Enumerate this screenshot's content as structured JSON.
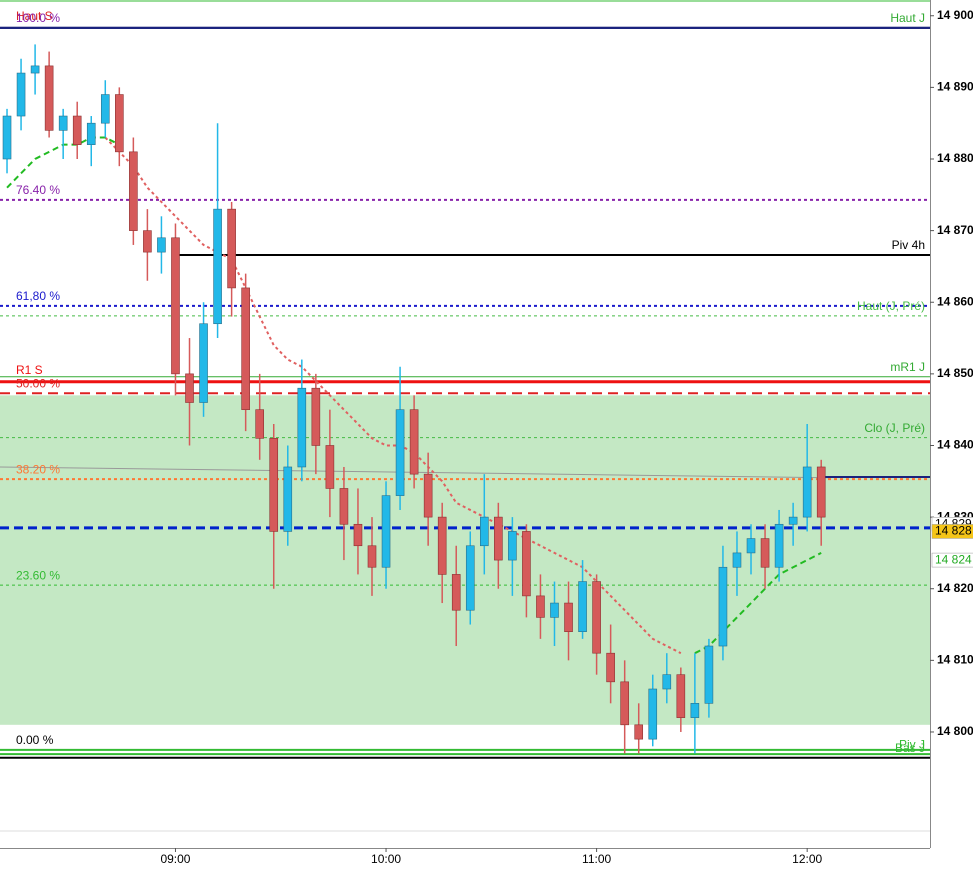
{
  "chart_data": {
    "type": "candlestick",
    "x": [
      "08:12",
      "08:16",
      "08:20",
      "08:24",
      "08:28",
      "08:32",
      "08:36",
      "08:40",
      "08:44",
      "08:48",
      "08:52",
      "08:56",
      "09:00",
      "09:04",
      "09:08",
      "09:12",
      "09:16",
      "09:20",
      "09:24",
      "09:28",
      "09:32",
      "09:36",
      "09:40",
      "09:44",
      "09:48",
      "09:52",
      "09:56",
      "10:00",
      "10:04",
      "10:08",
      "10:12",
      "10:16",
      "10:20",
      "10:24",
      "10:28",
      "10:32",
      "10:36",
      "10:40",
      "10:44",
      "10:48",
      "10:52",
      "10:56",
      "11:00",
      "11:04",
      "11:08",
      "11:12",
      "11:16",
      "11:20",
      "11:24",
      "11:28",
      "11:32",
      "11:36",
      "11:40",
      "11:44",
      "11:48",
      "11:52",
      "11:56",
      "12:00",
      "12:04"
    ],
    "open": [
      14880,
      14886,
      14892,
      14893,
      14884,
      14886,
      14882,
      14885,
      14889,
      14881,
      14870,
      14867,
      14869,
      14850,
      14846,
      14857,
      14873,
      14862,
      14845,
      14841,
      14828,
      14837,
      14848,
      14840,
      14834,
      14829,
      14826,
      14823,
      14833,
      14845,
      14836,
      14830,
      14822,
      14817,
      14826,
      14830,
      14824,
      14828,
      14819,
      14816,
      14818,
      14814,
      14821,
      14811,
      14807,
      14801,
      14799,
      14806,
      14808,
      14802,
      14804,
      14812,
      14823,
      14825,
      14827,
      14823,
      14829,
      14830,
      14837
    ],
    "high": [
      14887,
      14894,
      14896,
      14895,
      14887,
      14888,
      14886,
      14891,
      14890,
      14883,
      14873,
      14872,
      14871,
      14855,
      14860,
      14885,
      14874,
      14864,
      14850,
      14843,
      14840,
      14852,
      14850,
      14845,
      14837,
      14834,
      14830,
      14835,
      14851,
      14847,
      14839,
      14832,
      14826,
      14828,
      14836,
      14832,
      14830,
      14829,
      14822,
      14821,
      14821,
      14824,
      14822,
      14815,
      14810,
      14804,
      14808,
      14811,
      14809,
      14811,
      14813,
      14826,
      14828,
      14829,
      14829,
      14831,
      14832,
      14843,
      14838
    ],
    "low": [
      14878,
      14884,
      14889,
      14883,
      14880,
      14880,
      14879,
      14883,
      14879,
      14868,
      14863,
      14864,
      14847,
      14840,
      14844,
      14855,
      14858,
      14842,
      14838,
      14820,
      14826,
      14835,
      14836,
      14830,
      14824,
      14822,
      14819,
      14820,
      14831,
      14834,
      14826,
      14818,
      14812,
      14815,
      14822,
      14820,
      14819,
      14816,
      14813,
      14812,
      14810,
      14813,
      14808,
      14804,
      14797,
      14797,
      14798,
      14804,
      14800,
      14797,
      14802,
      14810,
      14819,
      14822,
      14820,
      14821,
      14826,
      14828,
      14826
    ],
    "close": [
      14886,
      14892,
      14893,
      14884,
      14886,
      14882,
      14885,
      14889,
      14881,
      14870,
      14867,
      14869,
      14850,
      14846,
      14857,
      14873,
      14862,
      14845,
      14841,
      14828,
      14837,
      14848,
      14840,
      14834,
      14829,
      14826,
      14823,
      14833,
      14845,
      14836,
      14830,
      14822,
      14817,
      14826,
      14830,
      14824,
      14828,
      14819,
      14816,
      14818,
      14814,
      14821,
      14811,
      14807,
      14801,
      14799,
      14806,
      14808,
      14802,
      14804,
      14812,
      14823,
      14825,
      14827,
      14823,
      14829,
      14830,
      14837,
      14830
    ],
    "up_color": "#22b8e8",
    "down_color": "#d55a5a",
    "series": [
      {
        "color": "#e06060",
        "style": "dotted",
        "values": [
          null,
          null,
          null,
          null,
          null,
          null,
          null,
          14883,
          14881,
          14879,
          14876,
          14874,
          14872,
          14870,
          14868,
          14867,
          14866,
          14862,
          14858,
          14854,
          14852,
          14851,
          14849,
          14847,
          14845,
          14843,
          14841,
          14840,
          14840,
          14839,
          14837,
          14835,
          14832,
          14831,
          14830,
          14829,
          14828,
          14827,
          14826,
          14825,
          14824,
          14823,
          14821,
          14819,
          14817,
          14815,
          14813,
          14812,
          14811,
          null,
          null,
          null,
          null,
          null,
          null,
          null,
          null,
          null,
          null
        ]
      },
      {
        "color": "#22bb22",
        "style": "dashed",
        "values": [
          14876,
          14878,
          14880,
          14881,
          14882,
          14882,
          14883,
          14883,
          14882,
          null,
          null,
          null,
          null,
          null,
          null,
          null,
          null,
          null,
          null,
          null,
          null,
          null,
          null,
          null,
          null,
          null,
          null,
          null,
          null,
          null,
          null,
          null,
          null,
          null,
          null,
          null,
          null,
          null,
          null,
          null,
          null,
          null,
          null,
          null,
          null,
          null,
          null,
          null,
          null,
          14811,
          14812,
          14814,
          14816,
          14818,
          14820,
          14822,
          14823,
          14824,
          14825
        ]
      }
    ],
    "zone": [
      14801,
      14847
    ],
    "trendline": [
      14837,
      14835.5
    ],
    "levels": [
      {
        "label": "Haut J",
        "value": 14898.3,
        "color": "#1a237e",
        "style": "solid",
        "width": 2,
        "side": "right",
        "label_color": "#33aa33"
      },
      {
        "label": "Haut S",
        "value": 14898.3,
        "color": "#1a237e",
        "style": "solid",
        "width": 2,
        "side": "left",
        "label_color": "#dd2222"
      },
      {
        "label": "100.0 %",
        "value": 14898.3,
        "color": "#1a237e",
        "style": "solid",
        "width": 2,
        "side": "left",
        "label_color": "#8822aa"
      },
      {
        "label": "76.40 %",
        "value": 14874.3,
        "color": "#8822aa",
        "style": "dotted",
        "width": 2,
        "side": "left",
        "label_color": "#8822aa"
      },
      {
        "label": "Piv 4h",
        "value": 14866.6,
        "color": "#000000",
        "style": "solid",
        "width": 2,
        "side": "right",
        "label_color": "#000000"
      },
      {
        "label": "61,80 %",
        "value": 14859.5,
        "color": "#1a1acc",
        "style": "dotted",
        "width": 2,
        "side": "left",
        "label_color": "#1a1acc"
      },
      {
        "label": "Haut (J, Pré)",
        "value": 14858.1,
        "color": "#44bb44",
        "style": "dotted",
        "width": 1,
        "side": "right",
        "label_color": "#44bb44"
      },
      {
        "label": "mR1 J",
        "value": 14849.6,
        "color": "#33aa33",
        "style": "solid",
        "width": 1,
        "side": "right",
        "label_color": "#33aa33"
      },
      {
        "label": "R1 S",
        "value": 14848.9,
        "color": "#ee1111",
        "style": "solid",
        "width": 3,
        "side": "left",
        "label_color": "#ee1111"
      },
      {
        "label": "50.00 %",
        "value": 14847.3,
        "color": "#dd2222",
        "style": "dashed",
        "width": 2,
        "side": "left",
        "label_color": "#dd2222"
      },
      {
        "label": "Clo (J, Pré)",
        "value": 14841.1,
        "color": "#44bb44",
        "style": "dotted",
        "width": 1,
        "side": "right",
        "label_color": "#33aa33"
      },
      {
        "label": "38.20 %",
        "value": 14835.3,
        "color": "#ff7733",
        "style": "dotted",
        "width": 2,
        "side": "left",
        "label_color": "#ff7733"
      },
      {
        "label": "23.60 %",
        "value": 14820.5,
        "color": "#33bb33",
        "style": "dotted",
        "width": 1,
        "side": "left",
        "label_color": "#33bb33"
      },
      {
        "label": "0.00 %",
        "value": 14797.5,
        "color": "#33bb33",
        "style": "solid",
        "width": 2,
        "side": "left",
        "label_color": "#000000"
      },
      {
        "label": "Piv J",
        "value": 14796.9,
        "color": "#33bb33",
        "style": "solid",
        "width": 2,
        "side": "right",
        "label_color": "#33bb33"
      },
      {
        "label": "Bas J",
        "value": 14796.4,
        "color": "#000000",
        "style": "solid",
        "width": 2,
        "side": "right",
        "label_color": "#33bb33"
      }
    ],
    "current": 14835.6,
    "current_color": "#1a237e",
    "last": {
      "value": 14828.5,
      "color": "#0022cc"
    },
    "price_tags": [
      {
        "value": 14829,
        "label": "14 829",
        "fill": "#ffffff",
        "text_color": "#000000"
      },
      {
        "value": 14828,
        "label": "14 828",
        "fill": "#f5c518",
        "text_color": "#000000"
      },
      {
        "value": 14824,
        "label": "14 824",
        "fill": "#ffffff",
        "text_color": "#22aa22"
      }
    ],
    "xlim": [
      "08:10",
      "12:35"
    ],
    "xticks": [
      "09:00",
      "10:00",
      "11:00",
      "12:00"
    ],
    "ylim": [
      14783.8,
      14902.2
    ],
    "yticks": [
      {
        "value": 14800,
        "label": "14 800"
      },
      {
        "value": 14810,
        "label": "14 810"
      },
      {
        "value": 14820,
        "label": "14 820"
      },
      {
        "value": 14830,
        "label": "14 830"
      },
      {
        "value": 14840,
        "label": "14 840"
      },
      {
        "value": 14850,
        "label": "14 850"
      },
      {
        "value": 14860,
        "label": "14 860"
      },
      {
        "value": 14870,
        "label": "14 870"
      },
      {
        "value": 14880,
        "label": "14 880"
      },
      {
        "value": 14890,
        "label": "14 890"
      },
      {
        "value": 14900,
        "label": "14 900"
      }
    ]
  }
}
